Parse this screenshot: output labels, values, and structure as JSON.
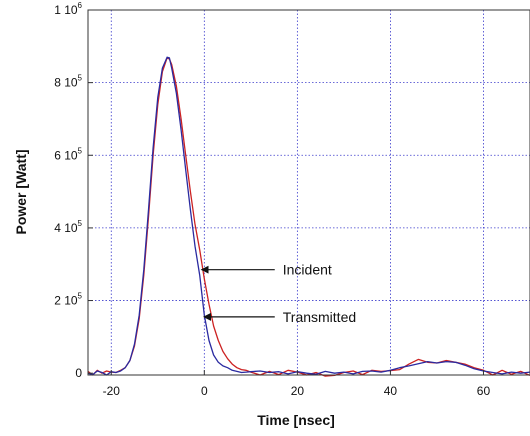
{
  "chart_data": {
    "type": "line",
    "xlabel": "Time [nsec]",
    "ylabel": "Power [Watt]",
    "xlim": [
      -25,
      70
    ],
    "ylim": [
      -5000,
      1000000
    ],
    "grid": true,
    "x_ticks": [
      {
        "value": -20,
        "label": "-20"
      },
      {
        "value": 0,
        "label": "0"
      },
      {
        "value": 20,
        "label": "20"
      },
      {
        "value": 40,
        "label": "40"
      },
      {
        "value": 60,
        "label": "60"
      }
    ],
    "y_ticks": [
      {
        "value": 0,
        "base": "0",
        "exp": ""
      },
      {
        "value": 200000,
        "base": "2 10",
        "exp": "5"
      },
      {
        "value": 400000,
        "base": "4 10",
        "exp": "5"
      },
      {
        "value": 600000,
        "base": "6 10",
        "exp": "5"
      },
      {
        "value": 800000,
        "base": "8 10",
        "exp": "5"
      },
      {
        "value": 1000000,
        "base": "1 10",
        "exp": "6"
      }
    ],
    "series": [
      {
        "name": "Incident",
        "color": "#cc2222",
        "x": [
          -25,
          -24,
          -23,
          -22,
          -21,
          -20,
          -19,
          -18,
          -17,
          -16,
          -15,
          -14,
          -13,
          -12,
          -11,
          -10,
          -9,
          -8,
          -7.5,
          -7,
          -6,
          -5,
          -4,
          -3,
          -2,
          -1,
          0,
          1,
          2,
          3,
          4,
          5,
          6,
          7,
          8,
          9,
          10,
          12,
          14,
          16,
          18,
          20,
          22,
          24,
          26,
          28,
          30,
          32,
          34,
          36,
          38,
          40,
          42,
          44,
          46,
          48,
          50,
          52,
          54,
          56,
          58,
          60,
          62,
          64,
          66,
          68,
          70
        ],
        "y": [
          5000,
          -5000,
          8000,
          0,
          6000,
          3000,
          2000,
          8000,
          15000,
          35000,
          75000,
          150000,
          270000,
          430000,
          600000,
          740000,
          830000,
          868000,
          865000,
          850000,
          790000,
          700000,
          600000,
          500000,
          410000,
          340000,
          260000,
          190000,
          130000,
          90000,
          60000,
          40000,
          25000,
          15000,
          10000,
          8000,
          3000,
          -5000,
          5000,
          -4000,
          8000,
          3000,
          -5000,
          2000,
          -8000,
          -6000,
          2000,
          6000,
          -4000,
          8000,
          5000,
          7000,
          10000,
          25000,
          38000,
          30000,
          28000,
          35000,
          30000,
          25000,
          15000,
          8000,
          -5000,
          8000,
          -3000,
          5000,
          -6000
        ]
      },
      {
        "name": "Transmitted",
        "color": "#2a2aa0",
        "x": [
          -25,
          -24,
          -23,
          -22,
          -21,
          -20,
          -19,
          -18,
          -17,
          -16,
          -15,
          -14,
          -13,
          -12,
          -11,
          -10,
          -9,
          -8,
          -7.5,
          -7,
          -6,
          -5,
          -4,
          -3,
          -2,
          -1,
          0,
          1,
          2,
          3,
          4,
          5,
          6,
          7,
          8,
          9,
          10,
          12,
          14,
          16,
          18,
          20,
          22,
          24,
          26,
          28,
          30,
          32,
          34,
          36,
          38,
          40,
          42,
          44,
          46,
          48,
          50,
          52,
          54,
          56,
          58,
          60,
          62,
          64,
          66,
          68,
          70
        ],
        "y": [
          0,
          -4000,
          6000,
          2000,
          -5000,
          4000,
          2000,
          6000,
          15000,
          35000,
          80000,
          160000,
          285000,
          450000,
          620000,
          760000,
          840000,
          870000,
          868000,
          840000,
          770000,
          670000,
          560000,
          450000,
          350000,
          270000,
          160000,
          90000,
          50000,
          30000,
          20000,
          15000,
          8000,
          5000,
          2000,
          3000,
          4000,
          6000,
          2000,
          4000,
          -2000,
          4000,
          0,
          -3000,
          5000,
          0,
          3000,
          -2000,
          5000,
          6000,
          3000,
          8000,
          15000,
          20000,
          26000,
          32000,
          28000,
          32000,
          30000,
          22000,
          12000,
          6000,
          2000,
          -2000,
          3000,
          0,
          3000
        ]
      }
    ],
    "annotations": [
      {
        "text": "Incident",
        "x": -1,
        "y": 285000,
        "label_x": 16,
        "label_y": 285000
      },
      {
        "text": "Transmitted",
        "x": -0.5,
        "y": 155000,
        "label_x": 16,
        "label_y": 155000
      }
    ]
  }
}
